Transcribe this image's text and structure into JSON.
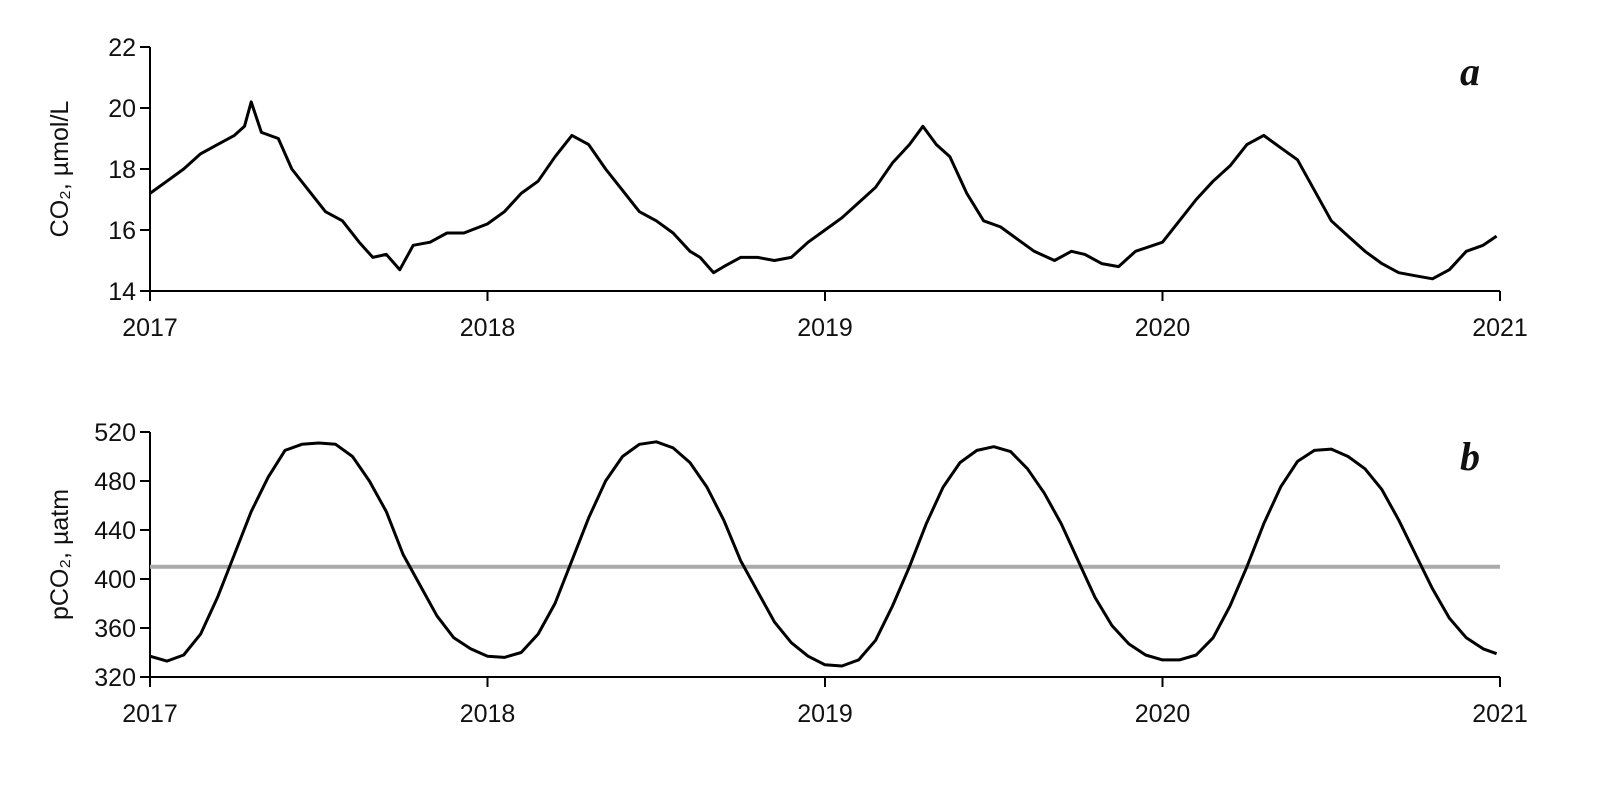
{
  "chart_data": [
    {
      "type": "line",
      "panel_label": "a",
      "y_label": "CO₂, µmol/L",
      "color": "#000000",
      "xlim": [
        2017,
        2021
      ],
      "xticks": [
        2017,
        2018,
        2019,
        2020,
        2021
      ],
      "ylim": [
        14,
        22
      ],
      "yticks": [
        14,
        16,
        18,
        20,
        22
      ],
      "x": [
        2017.0,
        2017.05,
        2017.1,
        2017.15,
        2017.2,
        2017.25,
        2017.28,
        2017.3,
        2017.33,
        2017.38,
        2017.42,
        2017.47,
        2017.52,
        2017.57,
        2017.62,
        2017.66,
        2017.7,
        2017.74,
        2017.78,
        2017.83,
        2017.88,
        2017.93,
        2018.0,
        2018.05,
        2018.1,
        2018.15,
        2018.2,
        2018.25,
        2018.3,
        2018.35,
        2018.4,
        2018.45,
        2018.5,
        2018.55,
        2018.6,
        2018.63,
        2018.67,
        2018.7,
        2018.75,
        2018.8,
        2018.85,
        2018.9,
        2018.95,
        2019.0,
        2019.05,
        2019.1,
        2019.15,
        2019.2,
        2019.25,
        2019.29,
        2019.33,
        2019.37,
        2019.42,
        2019.47,
        2019.52,
        2019.57,
        2019.62,
        2019.68,
        2019.73,
        2019.77,
        2019.82,
        2019.87,
        2019.92,
        2020.0,
        2020.05,
        2020.1,
        2020.15,
        2020.2,
        2020.25,
        2020.3,
        2020.35,
        2020.4,
        2020.45,
        2020.5,
        2020.55,
        2020.6,
        2020.65,
        2020.7,
        2020.75,
        2020.8,
        2020.85,
        2020.9,
        2020.95,
        2020.99
      ],
      "values": [
        17.2,
        17.6,
        18.0,
        18.5,
        18.8,
        19.1,
        19.4,
        20.2,
        19.2,
        19.0,
        18.0,
        17.3,
        16.6,
        16.3,
        15.6,
        15.1,
        15.2,
        14.7,
        15.5,
        15.6,
        15.9,
        15.9,
        16.2,
        16.6,
        17.2,
        17.6,
        18.4,
        19.1,
        18.8,
        18.0,
        17.3,
        16.6,
        16.3,
        15.9,
        15.3,
        15.1,
        14.6,
        14.8,
        15.1,
        15.1,
        15.0,
        15.1,
        15.6,
        16.0,
        16.4,
        16.9,
        17.4,
        18.2,
        18.8,
        19.4,
        18.8,
        18.4,
        17.2,
        16.3,
        16.1,
        15.7,
        15.3,
        15.0,
        15.3,
        15.2,
        14.9,
        14.8,
        15.3,
        15.6,
        16.3,
        17.0,
        17.6,
        18.1,
        18.8,
        19.1,
        18.7,
        18.3,
        17.3,
        16.3,
        15.8,
        15.3,
        14.9,
        14.6,
        14.5,
        14.4,
        14.7,
        15.3,
        15.5,
        15.8
      ]
    },
    {
      "type": "line",
      "panel_label": "b",
      "y_label": "pCO₂, µatm",
      "color": "#000000",
      "xlim": [
        2017,
        2021
      ],
      "xticks": [
        2017,
        2018,
        2019,
        2020,
        2021
      ],
      "ylim": [
        320,
        520
      ],
      "yticks": [
        320,
        360,
        400,
        440,
        480,
        520
      ],
      "hline": 410,
      "hline_color": "#aaaaaa",
      "x": [
        2017.0,
        2017.05,
        2017.1,
        2017.15,
        2017.2,
        2017.25,
        2017.3,
        2017.35,
        2017.4,
        2017.45,
        2017.5,
        2017.55,
        2017.6,
        2017.65,
        2017.7,
        2017.75,
        2017.8,
        2017.85,
        2017.9,
        2017.95,
        2018.0,
        2018.05,
        2018.1,
        2018.15,
        2018.2,
        2018.25,
        2018.3,
        2018.35,
        2018.4,
        2018.45,
        2018.5,
        2018.55,
        2018.6,
        2018.65,
        2018.7,
        2018.75,
        2018.8,
        2018.85,
        2018.9,
        2018.95,
        2019.0,
        2019.05,
        2019.1,
        2019.15,
        2019.2,
        2019.25,
        2019.3,
        2019.35,
        2019.4,
        2019.45,
        2019.5,
        2019.55,
        2019.6,
        2019.65,
        2019.7,
        2019.75,
        2019.8,
        2019.85,
        2019.9,
        2019.95,
        2020.0,
        2020.05,
        2020.1,
        2020.15,
        2020.2,
        2020.25,
        2020.3,
        2020.35,
        2020.4,
        2020.45,
        2020.5,
        2020.55,
        2020.6,
        2020.65,
        2020.7,
        2020.75,
        2020.8,
        2020.85,
        2020.9,
        2020.95,
        2020.99
      ],
      "values": [
        337,
        333,
        338,
        355,
        385,
        420,
        455,
        483,
        505,
        510,
        511,
        510,
        500,
        480,
        455,
        420,
        395,
        370,
        352,
        343,
        337,
        336,
        340,
        355,
        380,
        415,
        450,
        480,
        500,
        510,
        512,
        507,
        495,
        475,
        448,
        415,
        390,
        365,
        348,
        337,
        330,
        329,
        334,
        350,
        378,
        410,
        445,
        475,
        495,
        505,
        508,
        504,
        490,
        470,
        445,
        415,
        385,
        362,
        347,
        338,
        334,
        334,
        338,
        352,
        378,
        410,
        445,
        475,
        496,
        505,
        506,
        500,
        490,
        473,
        448,
        420,
        392,
        368,
        352,
        343,
        339
      ]
    }
  ]
}
